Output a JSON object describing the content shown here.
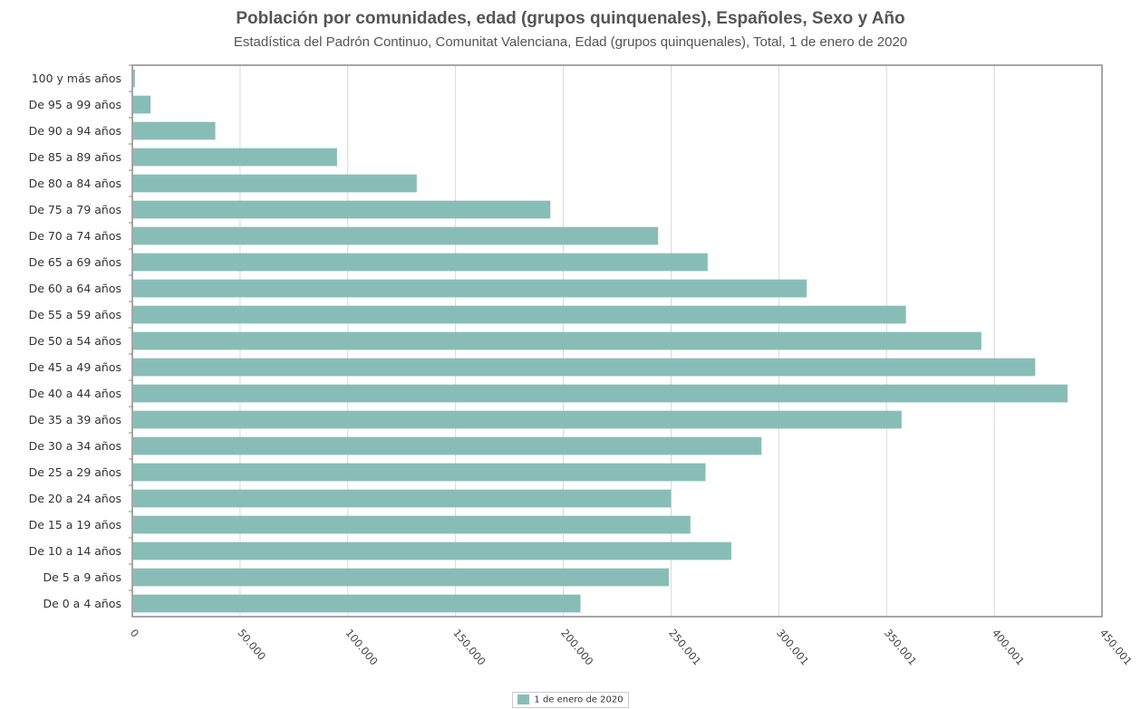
{
  "chart_data": {
    "type": "bar",
    "orientation": "horizontal",
    "title": "Población por comunidades, edad (grupos quinquenales), Españoles, Sexo y Año",
    "subtitle": "Estadística del Padrón Continuo, Comunitat Valenciana, Edad (grupos quinquenales), Total, 1 de enero de 2020",
    "categories": [
      "100 y más años",
      "De 95 a 99 años",
      "De 90 a 94 años",
      "De 85 a 89 años",
      "De 80 a 84 años",
      "De 75 a 79 años",
      "De 70 a 74 años",
      "De 65 a 69 años",
      "De 60 a 64 años",
      "De 55 a 59 años",
      "De 50 a 54 años",
      "De 45 a 49 años",
      "De 40 a 44 años",
      "De 35 a 39 años",
      "De 30 a 34 años",
      "De 25 a 29 años",
      "De 20 a 24 años",
      "De 15 a 19 años",
      "De 10 a 14 años",
      "De 5 a 9 años",
      "De 0 a 4 años"
    ],
    "series": [
      {
        "name": "1 de enero de 2020",
        "color": "#88bdb7",
        "values": [
          1200,
          8500,
          38500,
          95000,
          132000,
          194000,
          244000,
          267000,
          313000,
          359000,
          394000,
          419000,
          434000,
          357000,
          292000,
          266000,
          250000,
          259000,
          278000,
          249000,
          208000
        ]
      }
    ],
    "xlim": [
      0,
      450000
    ],
    "xticks": [
      "0",
      "50.000",
      "100.000",
      "150.000",
      "200.000",
      "250.001",
      "300.001",
      "350.001",
      "400.001",
      "450.001"
    ],
    "grid": true,
    "legend_position": "bottom"
  }
}
